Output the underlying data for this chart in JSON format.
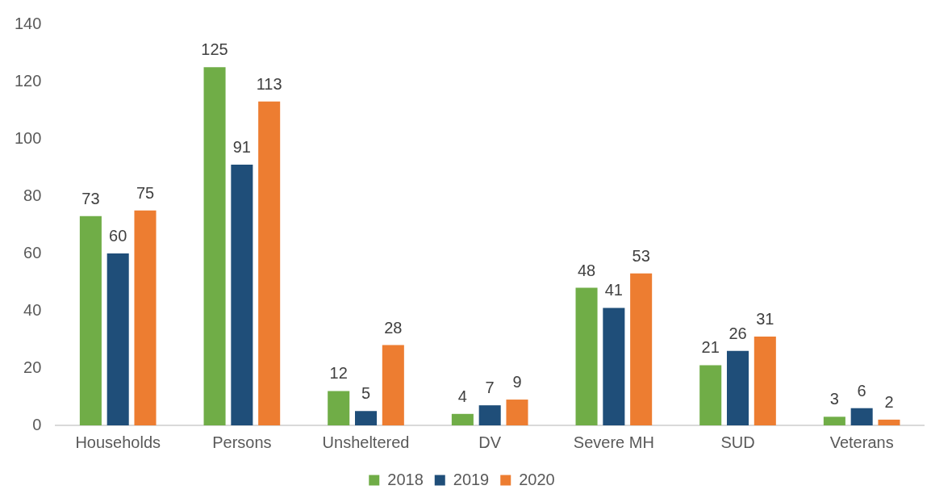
{
  "chart_data": {
    "type": "bar",
    "categories": [
      "Households",
      "Persons",
      "Unsheltered",
      "DV",
      "Severe MH",
      "SUD",
      "Veterans"
    ],
    "series": [
      {
        "name": "2018",
        "color": "#70ad47",
        "values": [
          73,
          125,
          12,
          4,
          48,
          21,
          3
        ]
      },
      {
        "name": "2019",
        "color": "#1f4e79",
        "values": [
          60,
          91,
          5,
          7,
          41,
          26,
          6
        ]
      },
      {
        "name": "2020",
        "color": "#ed7d31",
        "values": [
          75,
          113,
          28,
          9,
          53,
          31,
          2
        ]
      }
    ],
    "ylim": [
      0,
      140
    ],
    "yticks": [
      0,
      20,
      40,
      60,
      80,
      100,
      120,
      140
    ],
    "legend": "bottom",
    "data_labels": true
  }
}
